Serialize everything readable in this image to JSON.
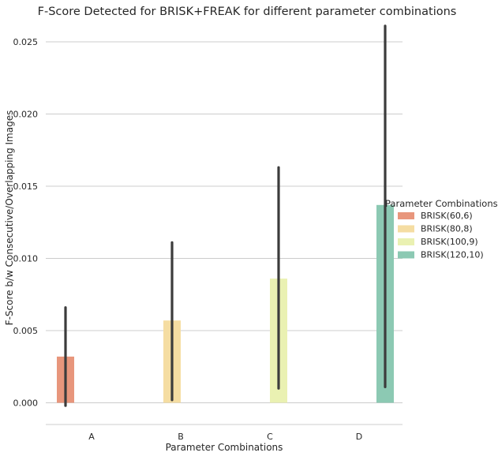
{
  "chart_data": {
    "type": "bar",
    "title": "F-Score Detected for BRISK+FREAK  for different parameter combinations",
    "xlabel": "Parameter Combinations",
    "ylabel": "F-Score b/w Consecutive/Overlapping Images",
    "categories": [
      "A",
      "B",
      "C",
      "D"
    ],
    "yticks": [
      "0.000",
      "0.005",
      "0.010",
      "0.015",
      "0.020",
      "0.025"
    ],
    "ylim": [
      -0.0015,
      0.0265
    ],
    "grid": true,
    "legend": {
      "title": "Parameter Combinations",
      "placement": "center-right"
    },
    "series": [
      {
        "name": "BRISK(60,6)",
        "color": "#e8967c",
        "values": [
          0.0032,
          0,
          0,
          0
        ],
        "error": [
          [
            -0.0002,
            0.0066
          ],
          null,
          null,
          null
        ]
      },
      {
        "name": "BRISK(80,8)",
        "color": "#f5dda2",
        "values": [
          0,
          0.0057,
          0,
          0
        ],
        "error": [
          null,
          [
            0.0002,
            0.0111
          ],
          null,
          null
        ]
      },
      {
        "name": "BRISK(100,9)",
        "color": "#eaf1b2",
        "values": [
          0,
          0,
          0.0086,
          0
        ],
        "error": [
          null,
          null,
          [
            0.001,
            0.0163
          ],
          null
        ]
      },
      {
        "name": "BRISK(120,10)",
        "color": "#8cc9b3",
        "values": [
          0,
          0,
          0,
          0.0137
        ],
        "error": [
          null,
          null,
          null,
          [
            0.0011,
            0.0261
          ]
        ]
      }
    ]
  }
}
